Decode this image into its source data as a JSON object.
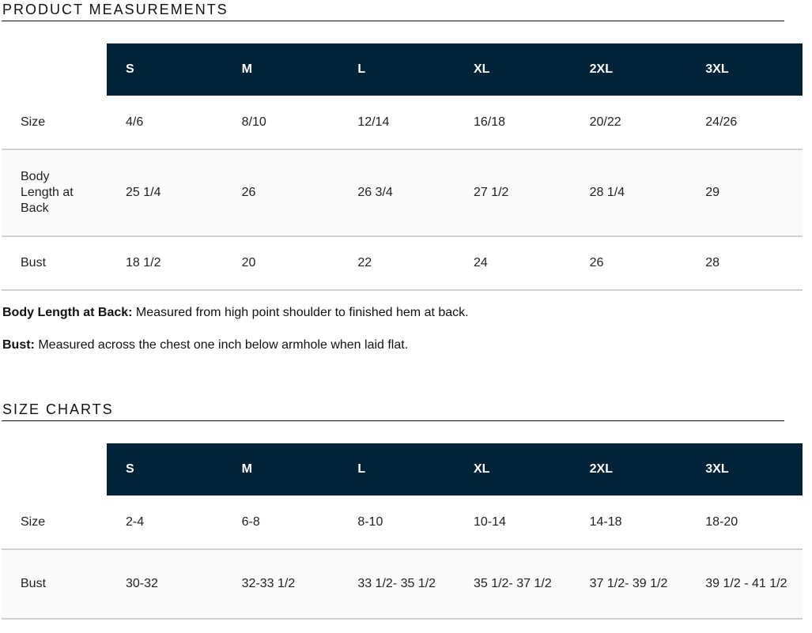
{
  "product_measurements": {
    "title": "PRODUCT MEASUREMENTS",
    "headers": [
      "S",
      "M",
      "L",
      "XL",
      "2XL",
      "3XL"
    ],
    "rows": [
      {
        "label": "Size",
        "values": [
          "4/6",
          "8/10",
          "12/14",
          "16/18",
          "20/22",
          "24/26"
        ]
      },
      {
        "label": "Body Length at Back",
        "values": [
          "25 1/4",
          "26",
          "26 3/4",
          "27 1/2",
          "28 1/4",
          "29"
        ]
      },
      {
        "label": "Bust",
        "values": [
          "18 1/2",
          "20",
          "22",
          "24",
          "26",
          "28"
        ]
      }
    ],
    "notes": [
      {
        "term": "Body Length at Back:",
        "text": " Measured from high point shoulder to finished hem at back."
      },
      {
        "term": "Bust:",
        "text": " Measured across the chest one inch below armhole when laid flat."
      }
    ]
  },
  "size_charts": {
    "title": "SIZE CHARTS",
    "headers": [
      "S",
      "M",
      "L",
      "XL",
      "2XL",
      "3XL"
    ],
    "rows": [
      {
        "label": "Size",
        "values": [
          "2-4",
          "6-8",
          "8-10",
          "10-14",
          "14-18",
          "18-20"
        ]
      },
      {
        "label": "Bust",
        "values": [
          "30-32",
          "32-33 1/2",
          "33 1/2- 35 1/2",
          "35 1/2- 37 1/2",
          "37 1/2- 39 1/2",
          "39 1/2 - 41 1/2"
        ]
      }
    ]
  },
  "colors": {
    "header_bg": "#002337",
    "header_text": "#ffffff",
    "row_border": "#cfcfcf",
    "alt_row_bg": "#fafafa"
  }
}
